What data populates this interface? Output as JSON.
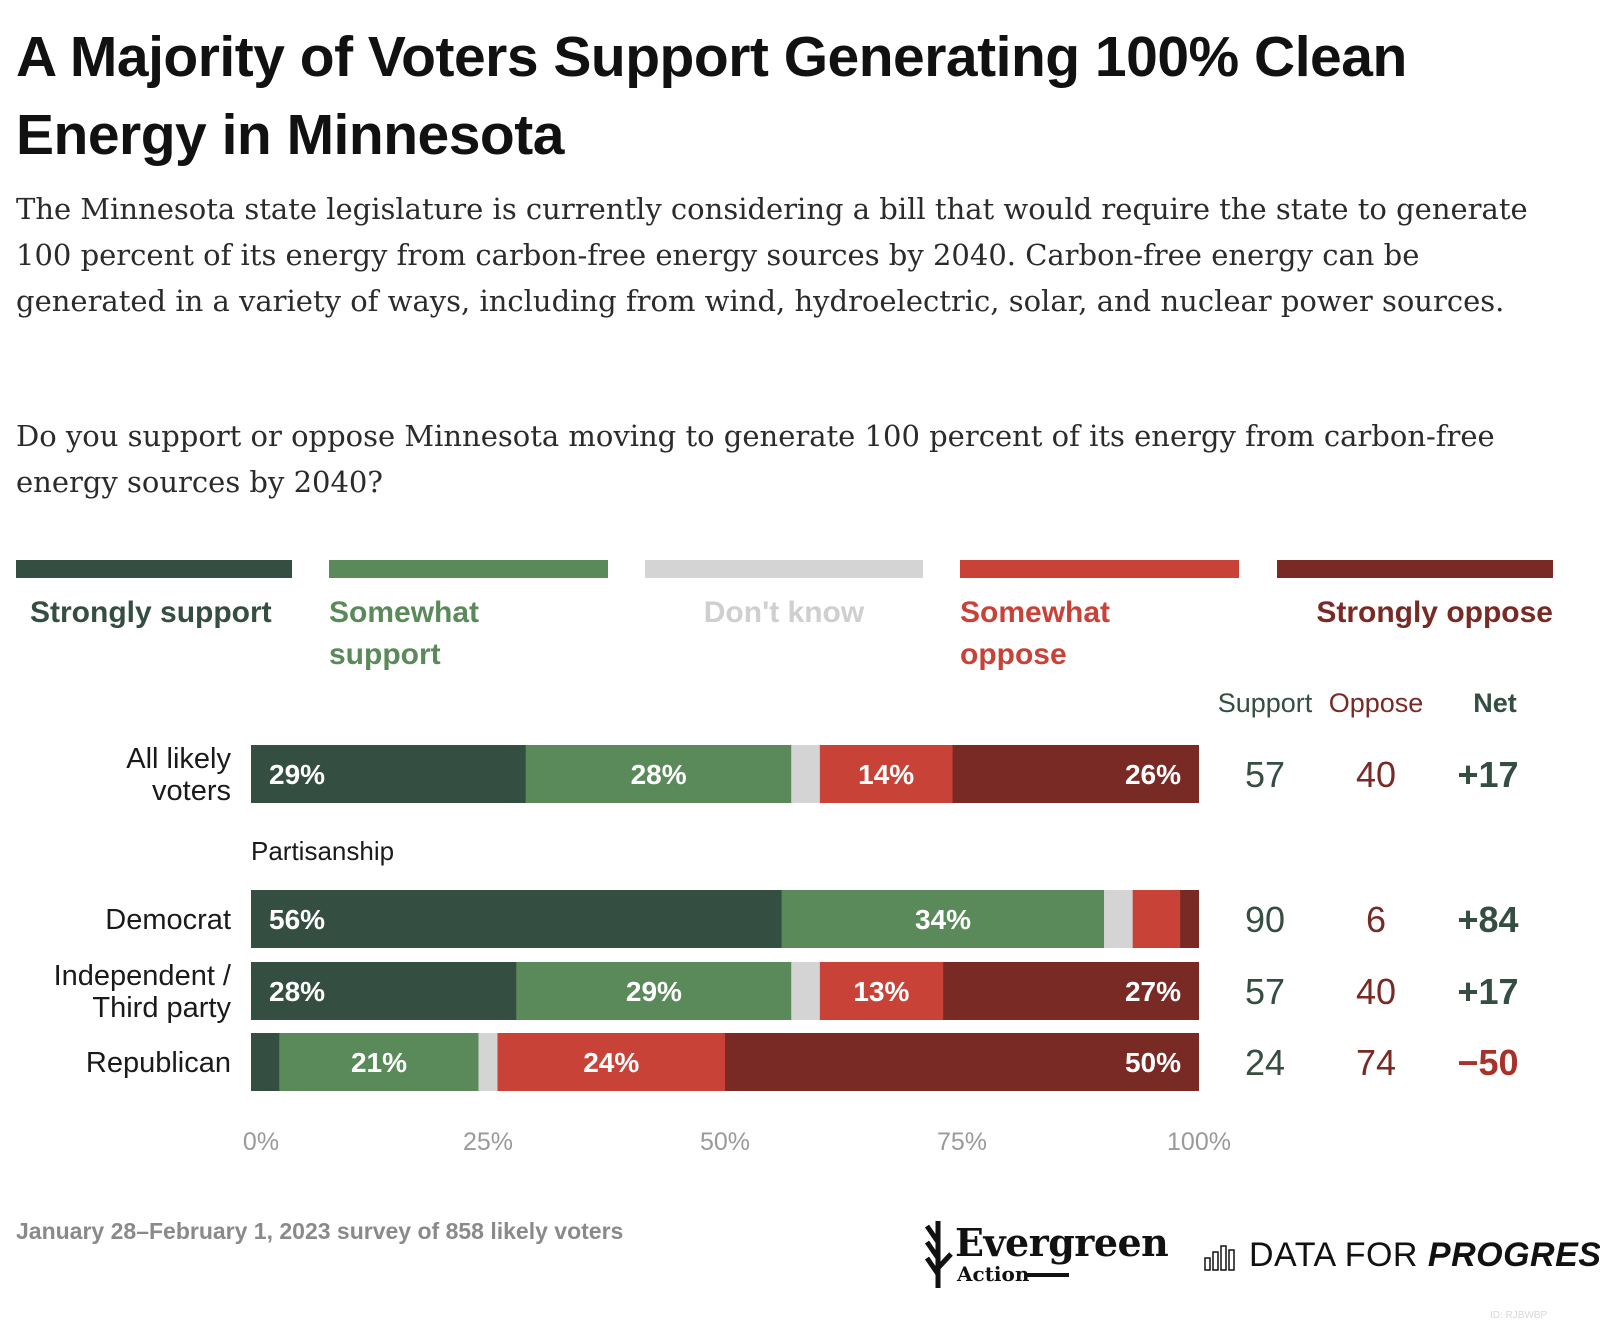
{
  "title": "A Majority of Voters Support Generating 100% Clean Energy in Minnesota",
  "subtitle": "The Minnesota state legislature is currently considering a bill that would require the state to generate 100 percent of its energy from carbon-free energy sources by 2040. Carbon-free energy can be generated in a variety of ways, including from wind, hydroelectric, solar, and nuclear power sources.",
  "question": "Do you support or oppose Minnesota moving to generate 100 percent of its energy from carbon-free energy sources by 2040?",
  "legend": [
    {
      "label": "Strongly support",
      "color": "#344e41"
    },
    {
      "label": "Somewhat support",
      "color": "#5a8a5a"
    },
    {
      "label": "Don't know",
      "color": "#d4d4d4"
    },
    {
      "label": "Somewhat oppose",
      "color": "#c84238"
    },
    {
      "label": "Strongly oppose",
      "color": "#7a2a24"
    }
  ],
  "chart_data": {
    "type": "bar",
    "orientation": "horizontal",
    "stacked": true,
    "series_names": [
      "Strongly support",
      "Somewhat support",
      "Don't know",
      "Somewhat oppose",
      "Strongly oppose"
    ],
    "colors": [
      "#344e41",
      "#5a8a5a",
      "#d4d4d4",
      "#c84238",
      "#7a2a24"
    ],
    "rows": [
      {
        "label": "All likely voters",
        "values": [
          29,
          28,
          3,
          14,
          26
        ],
        "support": "57",
        "oppose": "40",
        "net": "+17"
      },
      {
        "label": "Democrat",
        "values": [
          56,
          34,
          3,
          5,
          2
        ],
        "support": "90",
        "oppose": "6",
        "net": "+84"
      },
      {
        "label": "Independent / Third party",
        "values": [
          28,
          29,
          3,
          13,
          27
        ],
        "support": "57",
        "oppose": "40",
        "net": "+17"
      },
      {
        "label": "Republican",
        "values": [
          3,
          21,
          2,
          24,
          50
        ],
        "support": "24",
        "oppose": "74",
        "net": "−50"
      }
    ],
    "group_label": "Partisanship",
    "column_headers": {
      "support": "Support",
      "oppose": "Oppose",
      "net": "Net"
    },
    "x_ticks": [
      "0%",
      "25%",
      "50%",
      "75%",
      "100%"
    ],
    "xlim": [
      0,
      100
    ],
    "label_colors": {
      "support": "#344e41",
      "oppose": "#7a2a24",
      "net_positive": "#344e41",
      "net_negative": "#a83228"
    }
  },
  "footer": "January 28–February 1, 2023 survey of 858 likely voters",
  "logos": {
    "evergreen_name": "Evergreen",
    "evergreen_sub": "Action",
    "dfp_regular": "DATA FOR ",
    "dfp_italic": "PROGRESS"
  },
  "image_id": "ID: RJBWBP"
}
